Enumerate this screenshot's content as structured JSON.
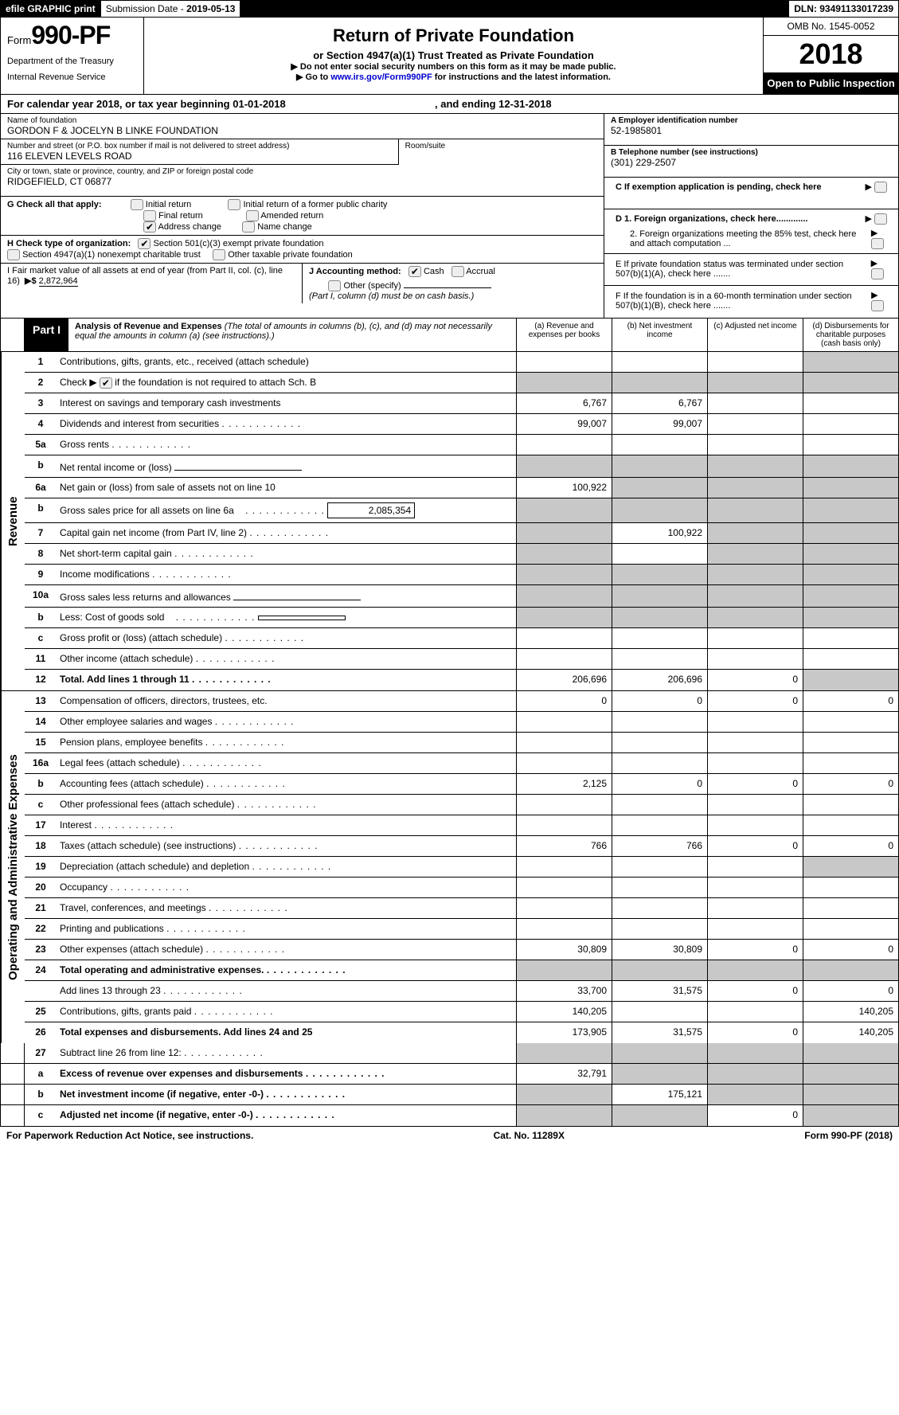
{
  "topbar": {
    "efile": "efile GRAPHIC print",
    "subdate_lbl": "Submission Date - ",
    "subdate": "2019-05-13",
    "dln_lbl": "DLN: ",
    "dln": "93491133017239"
  },
  "hdr": {
    "form_word": "Form",
    "form_num": "990-PF",
    "dept1": "Department of the Treasury",
    "dept2": "Internal Revenue Service",
    "title": "Return of Private Foundation",
    "sub": "or Section 4947(a)(1) Trust Treated as Private Foundation",
    "warn": "▶ Do not enter social security numbers on this form as it may be made public.",
    "goto_pre": "▶ Go to ",
    "goto_link": "www.irs.gov/Form990PF",
    "goto_post": " for instructions and the latest information.",
    "omb": "OMB No. 1545-0052",
    "year": "2018",
    "open": "Open to Public Inspection"
  },
  "calyear": {
    "pre": "For calendar year 2018, or tax year beginning ",
    "begin": "01-01-2018",
    "mid": " , and ending ",
    "end": "12-31-2018"
  },
  "name": {
    "lbl": "Name of foundation",
    "val": "GORDON F & JOCELYN B LINKE FOUNDATION"
  },
  "addr": {
    "lbl": "Number and street (or P.O. box number if mail is not delivered to street address)",
    "val": "116 ELEVEN LEVELS ROAD",
    "room_lbl": "Room/suite"
  },
  "city": {
    "lbl": "City or town, state or province, country, and ZIP or foreign postal code",
    "val": "RIDGEFIELD, CT  06877"
  },
  "boxA": {
    "lbl": "A Employer identification number",
    "val": "52-1985801"
  },
  "boxB": {
    "lbl": "B Telephone number (see instructions)",
    "val": "(301) 229-2507"
  },
  "boxC": {
    "lbl": "C If exemption application is pending, check here"
  },
  "boxD1": "D 1. Foreign organizations, check here.............",
  "boxD2": "2. Foreign organizations meeting the 85% test, check here and attach computation ...",
  "boxE": "E  If private foundation status was terminated under section 507(b)(1)(A), check here .......",
  "boxF": "F  If the foundation is in a 60-month termination under section 507(b)(1)(B), check here .......",
  "G": {
    "lbl": "G Check all that apply:",
    "o1": "Initial return",
    "o2": "Initial return of a former public charity",
    "o3": "Final return",
    "o4": "Amended return",
    "o5": "Address change",
    "o6": "Name change"
  },
  "H": {
    "lbl": "H Check type of organization:",
    "o1": "Section 501(c)(3) exempt private foundation",
    "o2": "Section 4947(a)(1) nonexempt charitable trust",
    "o3": "Other taxable private foundation"
  },
  "I": {
    "lbl": "I Fair market value of all assets at end of year (from Part II, col. (c), line 16)",
    "arrow": "▶$",
    "val": "2,872,964"
  },
  "J": {
    "lbl": "J Accounting method:",
    "o1": "Cash",
    "o2": "Accrual",
    "o3": "Other (specify)",
    "note": "(Part I, column (d) must be on cash basis.)"
  },
  "part1": {
    "label": "Part I",
    "title": "Analysis of Revenue and Expenses ",
    "title_note": "(The total of amounts in columns (b), (c), and (d) may not necessarily equal the amounts in column (a) (see instructions).)",
    "col_a": "(a)    Revenue and expenses per books",
    "col_b": "(b)    Net investment income",
    "col_c": "(c)    Adjusted net income",
    "col_d": "(d)    Disbursements for charitable purposes (cash basis only)"
  },
  "side_rev": "Revenue",
  "side_exp": "Operating and Administrative Expenses",
  "rows": {
    "r1": {
      "n": "1",
      "d": "Contributions, gifts, grants, etc., received (attach schedule)"
    },
    "r2": {
      "n": "2",
      "d": "Check ▶ ",
      "d2": " if the foundation is not required to attach Sch. B"
    },
    "r3": {
      "n": "3",
      "d": "Interest on savings and temporary cash investments",
      "a": "6,767",
      "b": "6,767"
    },
    "r4": {
      "n": "4",
      "d": "Dividends and interest from securities",
      "a": "99,007",
      "b": "99,007"
    },
    "r5a": {
      "n": "5a",
      "d": "Gross rents"
    },
    "r5b": {
      "n": "b",
      "d": "Net rental income or (loss)"
    },
    "r6a": {
      "n": "6a",
      "d": "Net gain or (loss) from sale of assets not on line 10",
      "a": "100,922"
    },
    "r6b": {
      "n": "b",
      "d": "Gross sales price for all assets on line 6a",
      "box": "2,085,354"
    },
    "r7": {
      "n": "7",
      "d": "Capital gain net income (from Part IV, line 2)",
      "b": "100,922"
    },
    "r8": {
      "n": "8",
      "d": "Net short-term capital gain"
    },
    "r9": {
      "n": "9",
      "d": "Income modifications"
    },
    "r10a": {
      "n": "10a",
      "d": "Gross sales less returns and allowances"
    },
    "r10b": {
      "n": "b",
      "d": "Less: Cost of goods sold"
    },
    "r10c": {
      "n": "c",
      "d": "Gross profit or (loss) (attach schedule)"
    },
    "r11": {
      "n": "11",
      "d": "Other income (attach schedule)"
    },
    "r12": {
      "n": "12",
      "d": "Total. Add lines 1 through 11",
      "a": "206,696",
      "b": "206,696",
      "c": "0"
    },
    "r13": {
      "n": "13",
      "d": "Compensation of officers, directors, trustees, etc.",
      "a": "0",
      "b": "0",
      "c": "0",
      "dd": "0"
    },
    "r14": {
      "n": "14",
      "d": "Other employee salaries and wages"
    },
    "r15": {
      "n": "15",
      "d": "Pension plans, employee benefits"
    },
    "r16a": {
      "n": "16a",
      "d": "Legal fees (attach schedule)"
    },
    "r16b": {
      "n": "b",
      "d": "Accounting fees (attach schedule)",
      "a": "2,125",
      "b": "0",
      "c": "0",
      "dd": "0"
    },
    "r16c": {
      "n": "c",
      "d": "Other professional fees (attach schedule)"
    },
    "r17": {
      "n": "17",
      "d": "Interest"
    },
    "r18": {
      "n": "18",
      "d": "Taxes (attach schedule) (see instructions)",
      "a": "766",
      "b": "766",
      "c": "0",
      "dd": "0"
    },
    "r19": {
      "n": "19",
      "d": "Depreciation (attach schedule) and depletion"
    },
    "r20": {
      "n": "20",
      "d": "Occupancy"
    },
    "r21": {
      "n": "21",
      "d": "Travel, conferences, and meetings"
    },
    "r22": {
      "n": "22",
      "d": "Printing and publications"
    },
    "r23": {
      "n": "23",
      "d": "Other expenses (attach schedule)",
      "a": "30,809",
      "b": "30,809",
      "c": "0",
      "dd": "0"
    },
    "r24": {
      "n": "24",
      "d": "Total operating and administrative expenses."
    },
    "r24b": {
      "n": "",
      "d": "Add lines 13 through 23",
      "a": "33,700",
      "b": "31,575",
      "c": "0",
      "dd": "0"
    },
    "r25": {
      "n": "25",
      "d": "Contributions, gifts, grants paid",
      "a": "140,205",
      "dd": "140,205"
    },
    "r26": {
      "n": "26",
      "d": "Total expenses and disbursements. Add lines 24 and 25",
      "a": "173,905",
      "b": "31,575",
      "c": "0",
      "dd": "140,205"
    },
    "r27": {
      "n": "27",
      "d": "Subtract line 26 from line 12:"
    },
    "r27a": {
      "n": "a",
      "d": "Excess of revenue over expenses and disbursements",
      "a": "32,791"
    },
    "r27b": {
      "n": "b",
      "d": "Net investment income (if negative, enter -0-)",
      "b": "175,121"
    },
    "r27c": {
      "n": "c",
      "d": "Adjusted net income (if negative, enter -0-)",
      "c": "0"
    }
  },
  "footer": {
    "left": "For Paperwork Reduction Act Notice, see instructions.",
    "mid": "Cat. No. 11289X",
    "right_pre": "Form ",
    "right_bold": "990-PF",
    "right_post": " (2018)"
  }
}
